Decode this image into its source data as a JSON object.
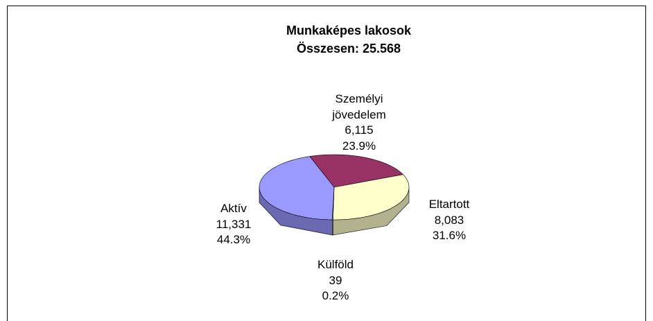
{
  "chart_data": {
    "type": "pie3d",
    "title": "Munkaképes  lakosok",
    "subtitle": "Összesen: 25.568",
    "categories": [
      "Személyi jövedelem",
      "Eltartott",
      "Külföld",
      "Aktív"
    ],
    "values": [
      6115,
      8083,
      39,
      11331
    ],
    "value_labels": [
      "6,115",
      "8,083",
      "39",
      "11,331"
    ],
    "percentages": [
      23.9,
      31.6,
      0.2,
      44.3
    ],
    "percentage_labels": [
      "23.9%",
      "31.6%",
      "0.2%",
      "44.3%"
    ],
    "colors": [
      "#993366",
      "#ffffcc",
      "#ccffff",
      "#9999ff"
    ]
  }
}
